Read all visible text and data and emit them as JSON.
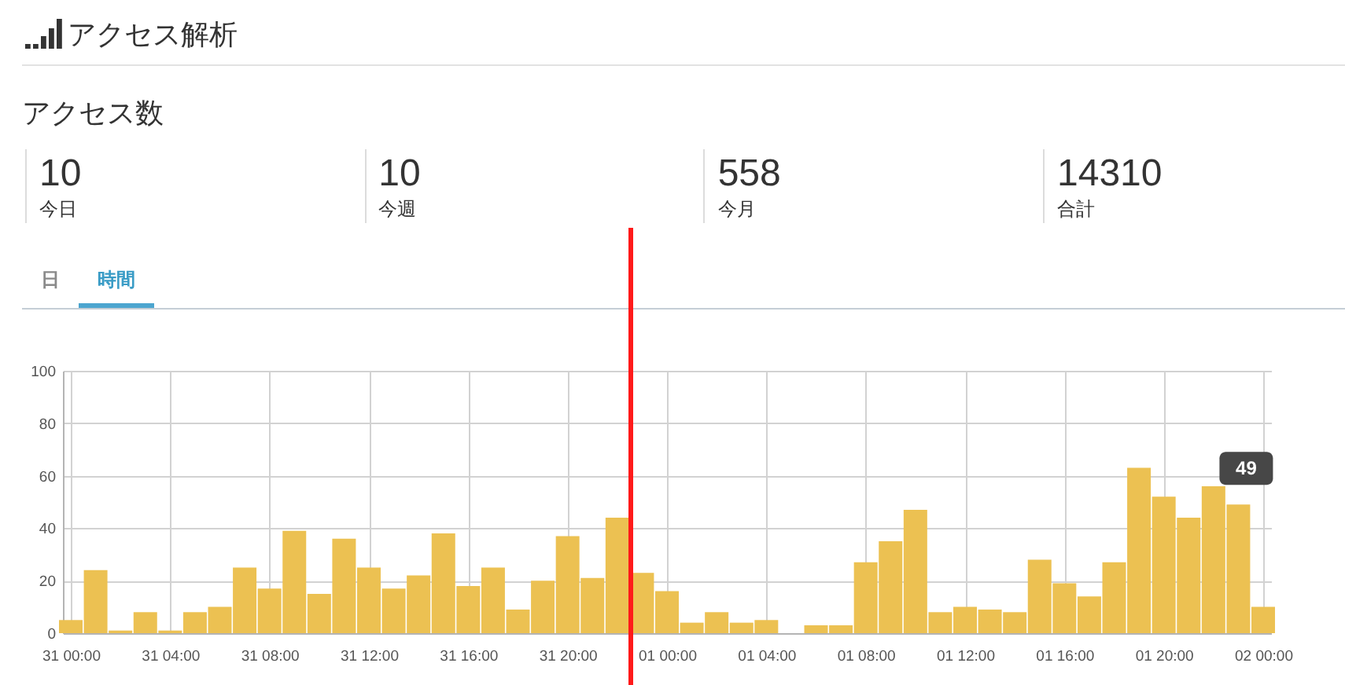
{
  "chart_data": [
    {
      "type": "other",
      "title": "アクセス解析",
      "subtitle": "アクセス数",
      "categories": [
        "今日",
        "今週",
        "今月",
        "合計"
      ],
      "values": [
        10,
        10,
        558,
        14310
      ],
      "data_labels": true
    },
    {
      "type": "bar",
      "categories": [
        "31 00:00",
        null,
        null,
        null,
        "31 04:00",
        null,
        null,
        null,
        "31 08:00",
        null,
        null,
        null,
        "31 12:00",
        null,
        null,
        null,
        "31 16:00",
        null,
        null,
        null,
        "31 20:00",
        null,
        null,
        null,
        "01 00:00",
        null,
        null,
        null,
        "01 04:00",
        null,
        null,
        null,
        "01 08:00",
        null,
        null,
        null,
        "01 12:00",
        null,
        null,
        null,
        "01 16:00",
        null,
        null,
        null,
        "01 20:00",
        null,
        null,
        null,
        "02 00:00"
      ],
      "values": [
        5,
        24,
        1,
        8,
        1,
        8,
        10,
        25,
        17,
        39,
        15,
        36,
        25,
        17,
        22,
        38,
        18,
        25,
        9,
        20,
        37,
        21,
        44,
        23,
        16,
        4,
        8,
        4,
        5,
        0,
        3,
        3,
        27,
        35,
        47,
        8,
        10,
        9,
        8,
        28,
        19,
        14,
        27,
        63,
        52,
        44,
        56,
        49,
        10
      ],
      "value_labels": [
        null,
        null,
        null,
        null,
        null,
        null,
        null,
        null,
        null,
        null,
        null,
        null,
        null,
        null,
        null,
        null,
        null,
        null,
        null,
        null,
        null,
        null,
        null,
        null,
        null,
        null,
        null,
        null,
        null,
        null,
        null,
        null,
        null,
        null,
        null,
        null,
        null,
        null,
        null,
        null,
        null,
        null,
        null,
        null,
        null,
        null,
        null,
        "49",
        null
      ],
      "color": "#ecc152",
      "ylim": [
        0,
        100
      ],
      "yticks": [
        0,
        20,
        40,
        60,
        80,
        100
      ],
      "grid": true,
      "annotations": [
        "日",
        "時間"
      ]
    }
  ]
}
